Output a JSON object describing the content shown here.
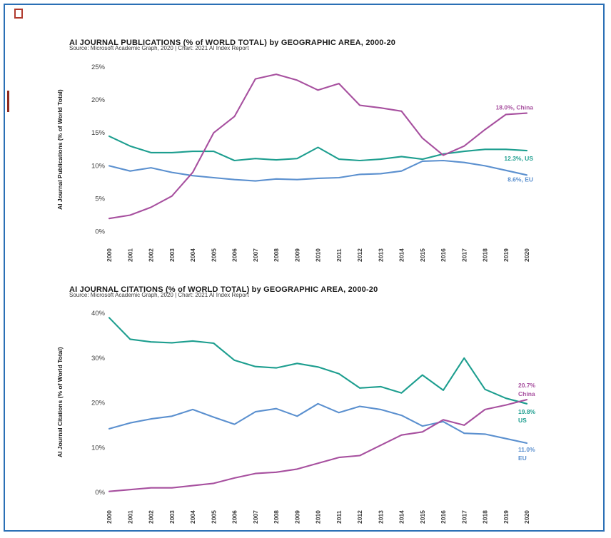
{
  "report": {
    "border_color": "#2a6fb5",
    "annotation_color": "#b03a2e"
  },
  "chart_data": [
    {
      "type": "line",
      "title": "AI JOURNAL PUBLICATIONS (% of WORLD TOTAL) by GEOGRAPHIC AREA, 2000-20",
      "source": "Source: Microsoft Academic Graph, 2020 | Chart: 2021 AI Index Report",
      "ylabel": "AI Journal Publications (% of World Total)",
      "ylim": [
        0,
        25
      ],
      "grid": false,
      "ytick_values": [
        0,
        5,
        10,
        15,
        20,
        25
      ],
      "ytick_labels": [
        "0%",
        "5%",
        "10%",
        "15%",
        "20%",
        "25%"
      ],
      "x_labels": [
        "2000",
        "2001",
        "2002",
        "2003",
        "2004",
        "2005",
        "2006",
        "2007",
        "2008",
        "2009",
        "2010",
        "2011",
        "2012",
        "2013",
        "2014",
        "2015",
        "2016",
        "2017",
        "2018",
        "2019",
        "2020"
      ],
      "series": [
        {
          "name": "China",
          "color": "#a7509f",
          "values": [
            2.0,
            2.5,
            3.7,
            5.4,
            9.0,
            15.0,
            17.5,
            23.2,
            23.9,
            23.0,
            21.5,
            22.5,
            19.2,
            18.8,
            18.3,
            14.2,
            11.6,
            13.0,
            15.5,
            17.8,
            18.0
          ],
          "end_label_lines": [
            "18.0%, China"
          ],
          "label_anchor": "end",
          "label_offset": [
            9,
            -5
          ]
        },
        {
          "name": "US",
          "color": "#1d9e8f",
          "values": [
            14.5,
            13.0,
            12.0,
            12.0,
            12.2,
            12.2,
            10.8,
            11.1,
            10.9,
            11.1,
            12.8,
            11.0,
            10.8,
            11.0,
            11.4,
            11.0,
            11.8,
            12.2,
            12.5,
            12.5,
            12.3
          ],
          "end_label_lines": [
            "12.3%, US"
          ],
          "label_anchor": "end",
          "label_offset": [
            9,
            14
          ]
        },
        {
          "name": "EU",
          "color": "#5b90cf",
          "values": [
            10.0,
            9.2,
            9.7,
            9.0,
            8.5,
            8.2,
            7.9,
            7.7,
            8.0,
            7.9,
            8.1,
            8.2,
            8.7,
            8.8,
            9.2,
            10.7,
            10.8,
            10.5,
            10.0,
            9.3,
            8.6
          ],
          "end_label_lines": [
            "8.6%, EU"
          ],
          "label_anchor": "end",
          "label_offset": [
            9,
            9
          ]
        }
      ]
    },
    {
      "type": "line",
      "title": "AI JOURNAL CITATIONS (% of WORLD TOTAL) by GEOGRAPHIC AREA, 2000-20",
      "source": "Source: Microsoft Academic Graph, 2020 | Chart: 2021 AI Index Report",
      "ylabel": "AI Journal Citations (% of World Total)",
      "ylim": [
        0,
        40
      ],
      "grid": false,
      "ytick_values": [
        0,
        10,
        20,
        30,
        40
      ],
      "ytick_labels": [
        "0%",
        "10%",
        "20%",
        "30%",
        "40%"
      ],
      "x_labels": [
        "2000",
        "2001",
        "2002",
        "2003",
        "2004",
        "2005",
        "2006",
        "2007",
        "2008",
        "2009",
        "2010",
        "2011",
        "2012",
        "2013",
        "2014",
        "2015",
        "2016",
        "2017",
        "2018",
        "2019",
        "2020"
      ],
      "series": [
        {
          "name": "China",
          "color": "#a7509f",
          "values": [
            0.2,
            0.6,
            1.0,
            1.0,
            1.5,
            2.0,
            3.2,
            4.2,
            4.5,
            5.2,
            6.5,
            7.8,
            8.2,
            10.5,
            12.8,
            13.5,
            16.2,
            15.0,
            18.5,
            19.5,
            20.7
          ],
          "end_label_lines": [
            "20.7%",
            "China"
          ],
          "label_anchor": "start",
          "label_offset": [
            -12,
            -17
          ]
        },
        {
          "name": "US",
          "color": "#1d9e8f",
          "values": [
            39.0,
            34.2,
            33.6,
            33.4,
            33.8,
            33.3,
            29.5,
            28.1,
            27.8,
            28.8,
            28.0,
            26.5,
            23.3,
            23.6,
            22.2,
            26.2,
            22.8,
            30.0,
            23.0,
            21.0,
            19.8
          ],
          "end_label_lines": [
            "19.8%",
            "US"
          ],
          "label_anchor": "start",
          "label_offset": [
            -12,
            14
          ]
        },
        {
          "name": "EU",
          "color": "#5b90cf",
          "values": [
            14.2,
            15.5,
            16.4,
            17.0,
            18.5,
            16.8,
            15.2,
            18.0,
            18.7,
            17.0,
            19.8,
            17.8,
            19.2,
            18.5,
            17.2,
            14.8,
            15.8,
            13.2,
            13.0,
            12.0,
            11.0
          ],
          "end_label_lines": [
            "11.0%",
            "EU"
          ],
          "label_anchor": "start",
          "label_offset": [
            -12,
            12
          ]
        }
      ]
    }
  ]
}
